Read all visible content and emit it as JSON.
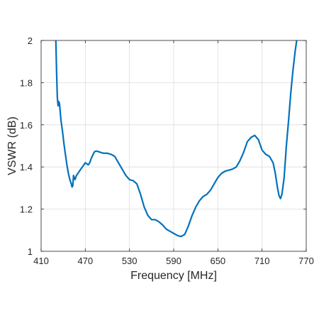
{
  "chart_data": {
    "type": "line",
    "title": "",
    "xlabel": "Frequency [MHz]",
    "ylabel": "VSWR (dB)",
    "xlim": [
      410,
      770
    ],
    "ylim": [
      1,
      2
    ],
    "xticks": [
      410,
      470,
      530,
      590,
      650,
      710,
      770
    ],
    "yticks": [
      1,
      1.2,
      1.4,
      1.6,
      1.8,
      2
    ],
    "xtick_labels": [
      "410",
      "470",
      "530",
      "590",
      "650",
      "710",
      "770"
    ],
    "ytick_labels": [
      "1",
      "1.2",
      "1.4",
      "1.6",
      "1.8",
      "2"
    ],
    "grid": true,
    "colors": {
      "line": "#0072BD",
      "grid": "#dcdcdc",
      "axes": "#262626"
    },
    "series": [
      {
        "x": [
          430,
          431,
          432,
          433,
          434,
          435,
          436,
          437,
          439,
          441,
          443,
          445,
          447,
          449,
          451,
          452,
          453,
          454,
          456,
          458,
          460,
          462,
          464,
          466,
          468,
          470,
          472,
          474,
          476,
          478,
          480,
          482,
          484,
          486,
          490,
          495,
          500,
          505,
          510,
          515,
          520,
          525,
          530,
          535,
          540,
          545,
          550,
          555,
          560,
          565,
          570,
          575,
          580,
          585,
          590,
          595,
          600,
          605,
          610,
          615,
          620,
          625,
          630,
          635,
          640,
          645,
          650,
          655,
          660,
          665,
          670,
          675,
          680,
          685,
          690,
          695,
          700,
          705,
          710,
          715,
          720,
          725,
          728,
          731,
          733,
          735,
          737,
          740,
          743,
          746,
          749,
          752,
          755,
          757
        ],
        "y": [
          2.0,
          1.85,
          1.73,
          1.69,
          1.71,
          1.7,
          1.66,
          1.62,
          1.57,
          1.51,
          1.46,
          1.41,
          1.37,
          1.34,
          1.32,
          1.305,
          1.31,
          1.36,
          1.34,
          1.36,
          1.37,
          1.38,
          1.39,
          1.4,
          1.41,
          1.42,
          1.415,
          1.41,
          1.42,
          1.44,
          1.455,
          1.47,
          1.475,
          1.475,
          1.47,
          1.465,
          1.465,
          1.46,
          1.45,
          1.42,
          1.39,
          1.36,
          1.34,
          1.335,
          1.32,
          1.27,
          1.21,
          1.17,
          1.15,
          1.15,
          1.14,
          1.125,
          1.105,
          1.095,
          1.085,
          1.075,
          1.07,
          1.08,
          1.12,
          1.17,
          1.21,
          1.24,
          1.26,
          1.27,
          1.29,
          1.32,
          1.35,
          1.37,
          1.38,
          1.385,
          1.39,
          1.4,
          1.43,
          1.47,
          1.52,
          1.54,
          1.55,
          1.53,
          1.48,
          1.46,
          1.45,
          1.42,
          1.37,
          1.3,
          1.265,
          1.25,
          1.27,
          1.35,
          1.5,
          1.62,
          1.75,
          1.86,
          1.95,
          2.0
        ]
      }
    ]
  }
}
